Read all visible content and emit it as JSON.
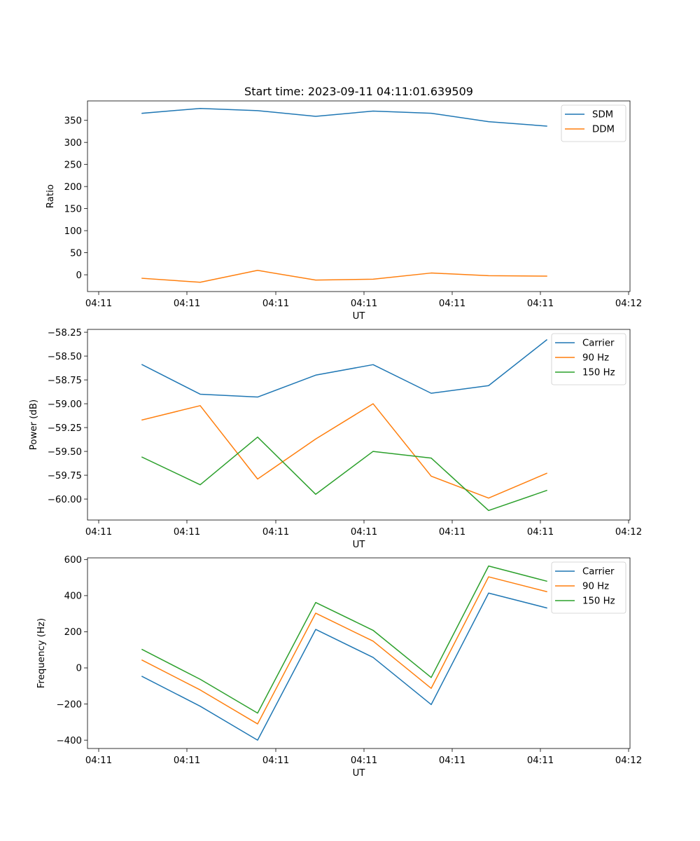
{
  "chart_data": [
    {
      "type": "line",
      "title": "Start time: 2023-09-11 04:11:01.639509",
      "xlabel": "UT",
      "ylabel": "Ratio",
      "x_tick_labels": [
        "04:11",
        "04:11",
        "04:11",
        "04:11",
        "04:11",
        "04:11",
        "04:12"
      ],
      "y_ticks": [
        0,
        50,
        100,
        150,
        200,
        250,
        300,
        350
      ],
      "ylim": [
        -38,
        394
      ],
      "legend_position": "top-right",
      "series": [
        {
          "name": "SDM",
          "color": "#1f77b4",
          "values": [
            366,
            377,
            372,
            359,
            371,
            366,
            347,
            337
          ]
        },
        {
          "name": "DDM",
          "color": "#ff7f0e",
          "values": [
            -8,
            -17,
            10,
            -12,
            -10,
            4,
            -2,
            -3
          ]
        }
      ]
    },
    {
      "type": "line",
      "title": "",
      "xlabel": "UT",
      "ylabel": "Power (dB)",
      "x_tick_labels": [
        "04:11",
        "04:11",
        "04:11",
        "04:11",
        "04:11",
        "04:11",
        "04:12"
      ],
      "y_ticks": [
        -58.25,
        -58.5,
        -58.75,
        -59.0,
        -59.25,
        -59.5,
        -59.75,
        -60.0
      ],
      "y_tick_labels": [
        "−58.25",
        "−58.50",
        "−58.75",
        "−59.00",
        "−59.25",
        "−59.50",
        "−59.75",
        "−60.00"
      ],
      "ylim": [
        -60.22,
        -58.22
      ],
      "legend_position": "top-right",
      "series": [
        {
          "name": "Carrier",
          "color": "#1f77b4",
          "values": [
            -58.59,
            -58.9,
            -58.93,
            -58.7,
            -58.59,
            -58.89,
            -58.81,
            -58.33
          ]
        },
        {
          "name": "90 Hz",
          "color": "#ff7f0e",
          "values": [
            -59.17,
            -59.02,
            -59.79,
            -59.37,
            -59.0,
            -59.76,
            -59.99,
            -59.73
          ]
        },
        {
          "name": "150 Hz",
          "color": "#2ca02c",
          "values": [
            -59.56,
            -59.85,
            -59.35,
            -59.95,
            -59.5,
            -59.57,
            -60.12,
            -59.91
          ]
        }
      ]
    },
    {
      "type": "line",
      "title": "",
      "xlabel": "UT",
      "ylabel": "Frequency (Hz)",
      "x_tick_labels": [
        "04:11",
        "04:11",
        "04:11",
        "04:11",
        "04:11",
        "04:11",
        "04:12"
      ],
      "y_ticks": [
        600,
        400,
        200,
        0,
        -200,
        -400
      ],
      "y_tick_labels": [
        "600",
        "400",
        "200",
        "0",
        "−200",
        "−400"
      ],
      "ylim": [
        -446,
        609
      ],
      "legend_position": "top-right",
      "series": [
        {
          "name": "Carrier",
          "color": "#1f77b4",
          "values": [
            -47,
            -212,
            -400,
            213,
            58,
            -203,
            414,
            332
          ]
        },
        {
          "name": "90 Hz",
          "color": "#ff7f0e",
          "values": [
            43,
            -122,
            -310,
            303,
            148,
            -113,
            504,
            422
          ]
        },
        {
          "name": "150 Hz",
          "color": "#2ca02c",
          "values": [
            102,
            -63,
            -250,
            362,
            208,
            -53,
            564,
            480
          ]
        }
      ]
    }
  ]
}
